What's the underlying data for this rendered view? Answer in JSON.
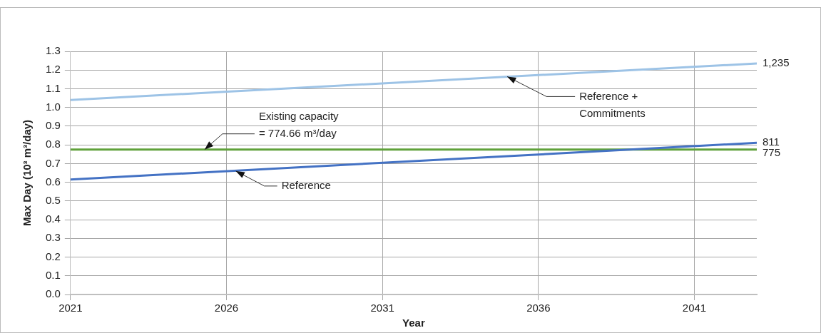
{
  "chart_data": {
    "type": "line",
    "xlabel": "Year",
    "ylabel": "Max Day (10³ m³/day)",
    "xlim": [
      2021,
      2043
    ],
    "xticks": [
      2021,
      2026,
      2031,
      2036,
      2041
    ],
    "ylim": [
      0,
      1.3
    ],
    "yticks": [
      {
        "value": 0,
        "label": "0.0"
      },
      0.1,
      0.2,
      0.3,
      0.4,
      0.5,
      0.6,
      0.7,
      0.8,
      0.9,
      {
        "value": 1,
        "label": "1.0"
      },
      1.1,
      1.2,
      1.3
    ],
    "x": [
      2021,
      2043
    ],
    "grid": true,
    "legend": false,
    "marker": "none",
    "line_style": "solid",
    "series": [
      {
        "color": "#9dc3e6",
        "values": [
          1.04,
          1.235
        ]
      },
      {
        "color": "#4472c4",
        "values": [
          0.615,
          0.811
        ]
      },
      {
        "color": "#5fa13a",
        "values": [
          0.775,
          0.775
        ]
      }
    ],
    "annotations": [
      {
        "text": "Reference +\nCommitments",
        "x": 2035,
        "y": 1.165
      },
      {
        "text": "Reference",
        "x": 2026.3,
        "y": 0.66
      },
      {
        "text": "Existing capacity\n= 774.66 m³/day",
        "x": 2025.3,
        "y": 0.775
      },
      {
        "text": "1,235",
        "x": 2043,
        "y": 1.235
      },
      {
        "text": "811",
        "x": 2043,
        "y": 0.811
      },
      {
        "text": "775",
        "x": 2043,
        "y": 0.775
      }
    ]
  }
}
